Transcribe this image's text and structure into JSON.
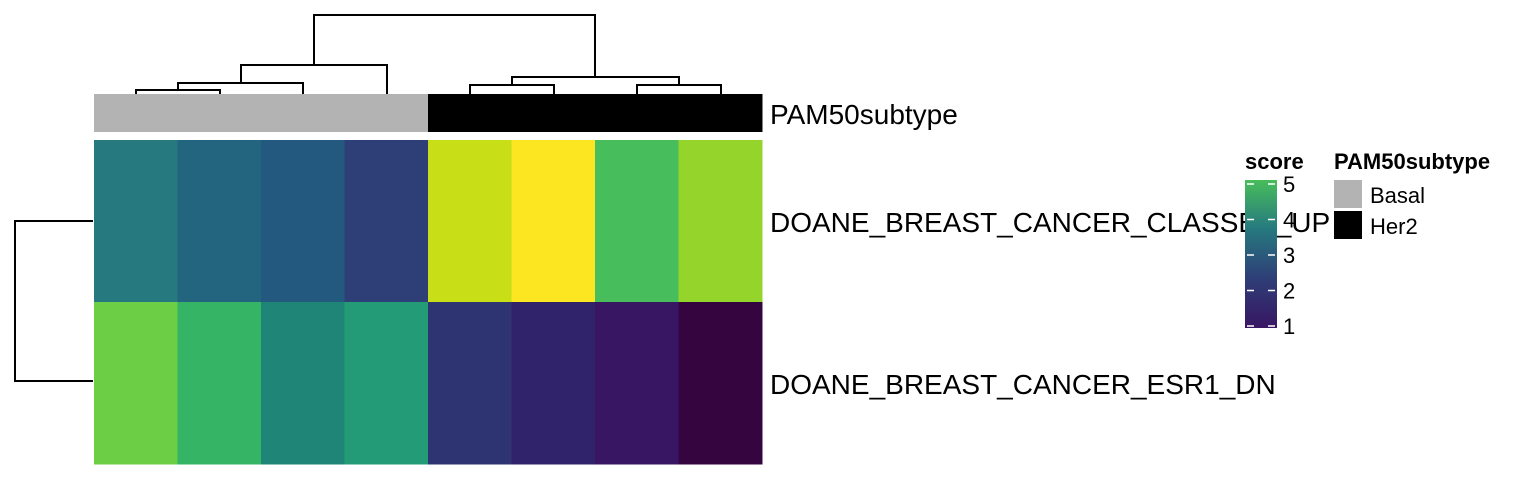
{
  "chart_data": {
    "type": "heatmap",
    "rows": [
      "DOANE_BREAST_CANCER_CLASSES_UP",
      "DOANE_BREAST_CANCER_ESR1_DN"
    ],
    "columns_annotation": {
      "name": "PAM50subtype",
      "values": [
        "Basal",
        "Basal",
        "Basal",
        "Basal",
        "Her2",
        "Her2",
        "Her2",
        "Her2"
      ]
    },
    "values": [
      [
        3.3,
        3.0,
        2.8,
        2.2,
        4.9,
        5.3,
        4.3,
        4.7
      ],
      [
        4.6,
        4.3,
        3.7,
        3.9,
        2.1,
        1.8,
        1.5,
        1.0
      ]
    ],
    "cell_colors": [
      [
        "#26797f",
        "#23647f",
        "#24597f",
        "#2e3f77",
        "#c8df18",
        "#fbe621",
        "#48bd5b",
        "#95d42a"
      ],
      [
        "#6bce45",
        "#35b465",
        "#1e8577",
        "#239b77",
        "#2e3472",
        "#31236b",
        "#381663",
        "#350540"
      ]
    ],
    "annotation_colors": {
      "Basal": "#b3b3b3",
      "Her2": "#000000"
    },
    "color_legend": {
      "title": "score",
      "ticks": [
        "5",
        "4",
        "3",
        "2",
        "1"
      ],
      "range": [
        1,
        5
      ],
      "gradient": [
        "#48bd5b",
        "#26797f",
        "#2e3f77",
        "#381663"
      ]
    },
    "annotation_legend": {
      "title": "PAM50subtype",
      "items": [
        {
          "label": "Basal",
          "color": "#b3b3b3"
        },
        {
          "label": "Her2",
          "color": "#000000"
        }
      ]
    },
    "row_dendrogram": true,
    "column_dendrogram": true
  }
}
